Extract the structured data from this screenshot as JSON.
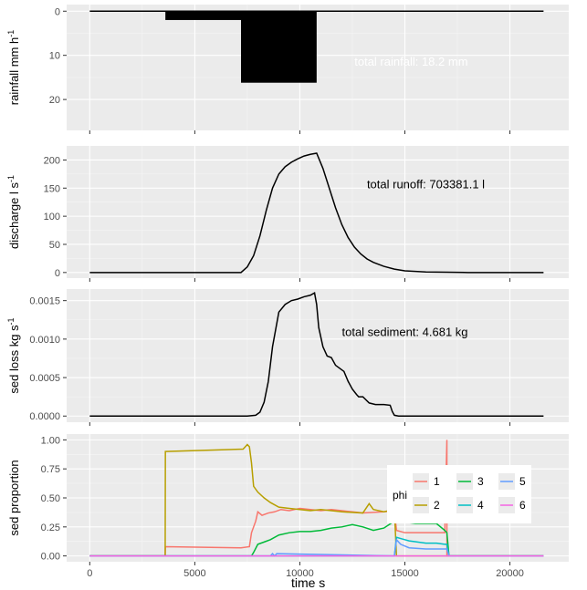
{
  "chart_data": [
    {
      "type": "bar",
      "panel": "rainfall",
      "ylabel": "rainfall mm h",
      "ylabel_sup": "-1",
      "ylim": [
        27,
        -1.5
      ],
      "y_reversed": true,
      "yticks": [
        0,
        10,
        20
      ],
      "ytick_labels": [
        "0",
        "10",
        "20"
      ],
      "grid": true,
      "annotation": "total rainfall: 18.2 mm",
      "bars": [
        {
          "x0": 0,
          "x1": 3600,
          "value": 0
        },
        {
          "x0": 3600,
          "x1": 7200,
          "value": 2
        },
        {
          "x0": 7200,
          "x1": 10800,
          "value": 16.2
        },
        {
          "x0": 10800,
          "x1": 21600,
          "value": 0
        }
      ]
    },
    {
      "type": "line",
      "panel": "discharge",
      "ylabel": "discharge  l s",
      "ylabel_sup": "-1",
      "ylim": [
        -10,
        225
      ],
      "yticks": [
        0,
        50,
        100,
        150,
        200
      ],
      "ytick_labels": [
        "0",
        "50",
        "100",
        "150",
        "200"
      ],
      "grid": true,
      "annotation": "total runoff: 703381.1 l",
      "x": [
        0,
        7200,
        7500,
        7800,
        8100,
        8400,
        8700,
        9000,
        9300,
        9600,
        9900,
        10200,
        10500,
        10800,
        11100,
        11400,
        11700,
        12000,
        12300,
        12600,
        12900,
        13200,
        13500,
        14000,
        14500,
        15000,
        15500,
        16000,
        17000,
        18000,
        21600
      ],
      "y": [
        0,
        0,
        10,
        30,
        65,
        110,
        150,
        175,
        188,
        196,
        202,
        207,
        210,
        212,
        185,
        150,
        115,
        85,
        62,
        45,
        33,
        24,
        18,
        11,
        6,
        3,
        2,
        1,
        0.5,
        0,
        0
      ]
    },
    {
      "type": "line",
      "panel": "sediment",
      "ylabel": "sed loss  kg s",
      "ylabel_sup": "-1",
      "ylim": [
        -8e-05,
        0.00165
      ],
      "yticks": [
        0,
        0.0005,
        0.001,
        0.0015
      ],
      "ytick_labels": [
        "0.0000",
        "0.0005",
        "0.0010",
        "0.0015"
      ],
      "grid": true,
      "annotation": "total sediment: 4.681 kg",
      "x": [
        0,
        7500,
        7900,
        8100,
        8300,
        8500,
        8700,
        9000,
        9300,
        9600,
        9900,
        10200,
        10500,
        10700,
        10800,
        10900,
        11100,
        11300,
        11500,
        11700,
        11900,
        12100,
        12300,
        12500,
        12700,
        12800,
        13000,
        13300,
        13600,
        14000,
        14300,
        14400,
        14500,
        14700,
        15000,
        18000,
        21600
      ],
      "y": [
        0,
        0,
        1e-05,
        5e-05,
        0.00018,
        0.00045,
        0.0009,
        0.00135,
        0.00145,
        0.0015,
        0.00152,
        0.00155,
        0.00157,
        0.0016,
        0.00145,
        0.00115,
        0.0009,
        0.00078,
        0.00076,
        0.00066,
        0.00062,
        0.00058,
        0.00045,
        0.00035,
        0.00028,
        0.00025,
        0.00025,
        0.00017,
        0.00015,
        0.00015,
        0.00014,
        6e-05,
        1e-05,
        0,
        0,
        0,
        0
      ]
    },
    {
      "type": "line",
      "panel": "sed-proportion",
      "ylabel": "sed proportion",
      "xlabel": "time  s",
      "ylim": [
        -0.05,
        1.05
      ],
      "xlim": [
        -1100,
        22800
      ],
      "yticks": [
        0,
        0.25,
        0.5,
        0.75,
        1
      ],
      "ytick_labels": [
        "0.00",
        "0.25",
        "0.50",
        "0.75",
        "1.00"
      ],
      "xticks": [
        0,
        5000,
        10000,
        15000,
        20000
      ],
      "xtick_labels": [
        "0",
        "5000",
        "10000",
        "15000",
        "20000"
      ],
      "grid": true,
      "legend": {
        "title": "phi",
        "placement": "right"
      },
      "series": [
        {
          "name": "1",
          "color": "#F8766D",
          "x": [
            0,
            3590,
            3600,
            7200,
            7600,
            7700,
            7900,
            8000,
            8200,
            8500,
            8800,
            9100,
            9500,
            10000,
            10500,
            11000,
            11500,
            12000,
            12500,
            13000,
            14000,
            14500,
            14600,
            15000,
            16000,
            16900,
            17000,
            17001,
            17100,
            21600
          ],
          "y": [
            0,
            0,
            0.08,
            0.07,
            0.08,
            0.2,
            0.3,
            0.38,
            0.35,
            0.37,
            0.38,
            0.4,
            0.39,
            0.41,
            0.4,
            0.39,
            0.4,
            0.39,
            0.38,
            0.37,
            0.38,
            0.39,
            0.22,
            0.2,
            0.2,
            0.2,
            1.0,
            0,
            0,
            0
          ]
        },
        {
          "name": "2",
          "color": "#B79F00",
          "x": [
            0,
            3590,
            3600,
            7300,
            7500,
            7600,
            7700,
            7800,
            8000,
            8300,
            8600,
            9000,
            9500,
            10000,
            10500,
            11000,
            12000,
            13000,
            13300,
            13500,
            14000,
            14500,
            14600,
            16900,
            17000,
            17100,
            21600
          ],
          "y": [
            0,
            0,
            0.9,
            0.92,
            0.96,
            0.94,
            0.8,
            0.6,
            0.55,
            0.5,
            0.46,
            0.42,
            0.41,
            0.4,
            0.39,
            0.4,
            0.38,
            0.37,
            0.45,
            0.4,
            0.38,
            0.4,
            0,
            0,
            0,
            0,
            0
          ]
        },
        {
          "name": "3",
          "color": "#00BA38",
          "x": [
            0,
            7700,
            7800,
            8000,
            8300,
            8600,
            9000,
            9500,
            10000,
            10500,
            11000,
            11500,
            12000,
            12500,
            13000,
            13500,
            14000,
            14500,
            14600,
            15500,
            16500,
            16900,
            17000,
            17100,
            21600
          ],
          "y": [
            0,
            0,
            0.03,
            0.1,
            0.12,
            0.14,
            0.18,
            0.2,
            0.21,
            0.21,
            0.22,
            0.24,
            0.25,
            0.27,
            0.25,
            0.22,
            0.24,
            0.3,
            0.3,
            0.28,
            0.28,
            0.22,
            0.2,
            0,
            0
          ]
        },
        {
          "name": "4",
          "color": "#00BFC4",
          "x": [
            0,
            14500,
            14600,
            14800,
            15200,
            15600,
            16000,
            16500,
            16900,
            17000,
            17100,
            21600
          ],
          "y": [
            0,
            0,
            0.16,
            0.15,
            0.13,
            0.12,
            0.11,
            0.11,
            0.1,
            0.1,
            0,
            0
          ]
        },
        {
          "name": "5",
          "color": "#619CFF",
          "x": [
            0,
            8600,
            8700,
            8800,
            8900,
            14500,
            14600,
            14800,
            15200,
            16000,
            16900,
            17000,
            17100,
            21600
          ],
          "y": [
            0,
            0,
            0.02,
            0,
            0.02,
            0,
            0.14,
            0.1,
            0.07,
            0.06,
            0.06,
            0.06,
            0,
            0
          ]
        },
        {
          "name": "6",
          "color": "#F564E3",
          "x": [
            0,
            21600
          ],
          "y": [
            0,
            0
          ]
        }
      ]
    }
  ]
}
